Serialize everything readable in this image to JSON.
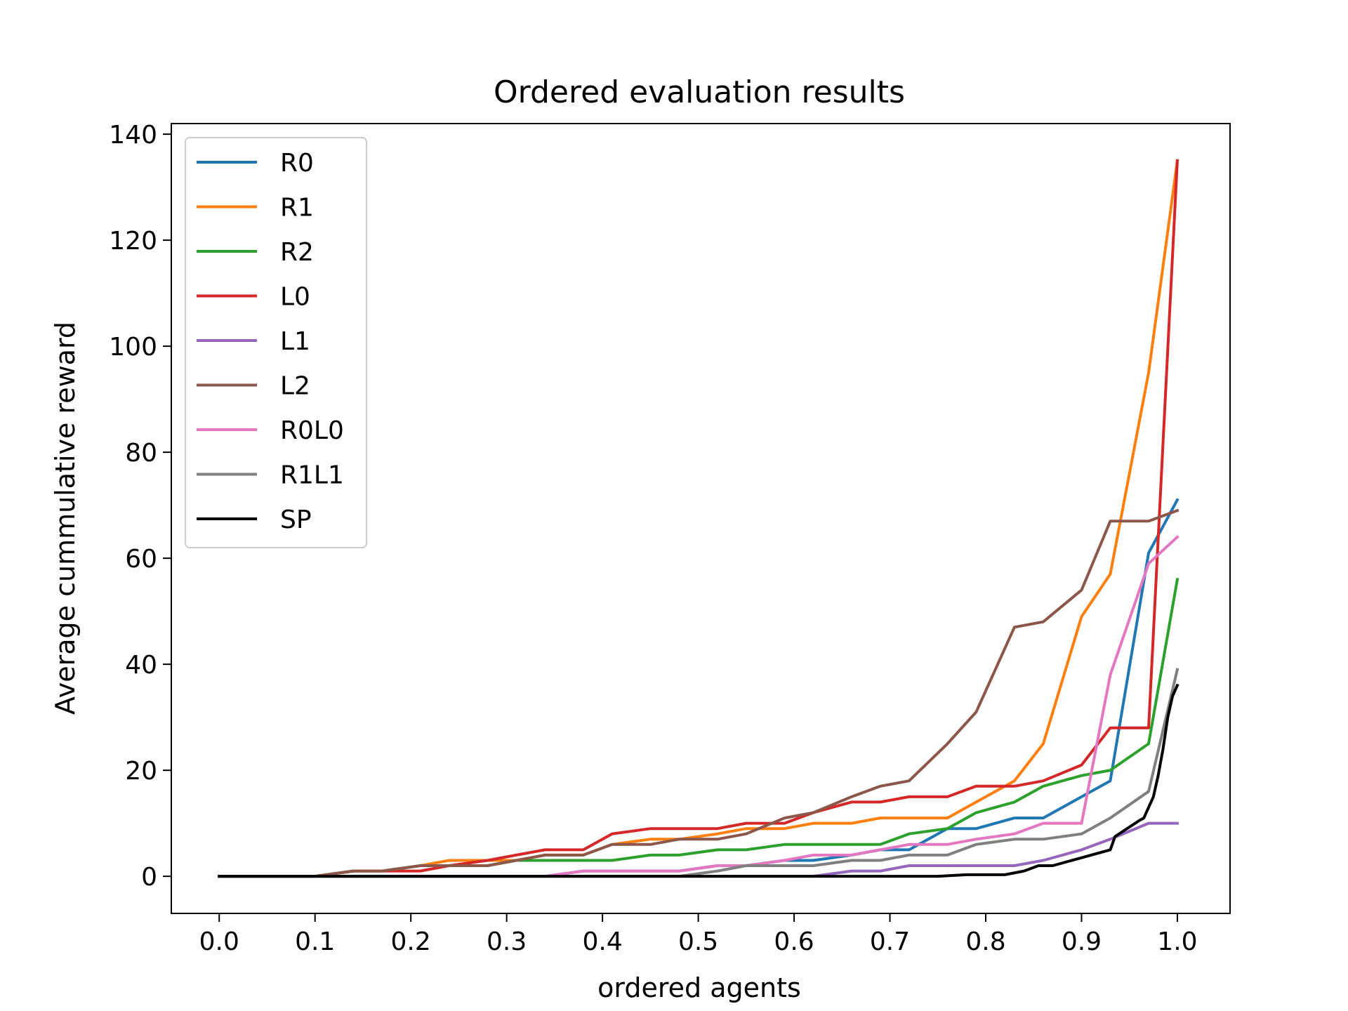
{
  "chart_data": {
    "type": "line",
    "title": "Ordered evaluation results",
    "xlabel": "ordered agents",
    "ylabel": "Average cummulative reward",
    "xlim": [
      -0.05,
      1.055
    ],
    "ylim": [
      -7,
      142
    ],
    "xticks": [
      "0.0",
      "0.1",
      "0.2",
      "0.3",
      "0.4",
      "0.5",
      "0.6",
      "0.7",
      "0.8",
      "0.9",
      "1.0"
    ],
    "yticks": [
      "0",
      "20",
      "40",
      "60",
      "80",
      "100",
      "120",
      "140"
    ],
    "grid": false,
    "legend_position": "top-left",
    "series": [
      {
        "name": "R0",
        "color": "#1f77b4",
        "x": [
          0,
          0.1,
          0.14,
          0.21,
          0.34,
          0.38,
          0.42,
          0.45,
          0.48,
          0.52,
          0.55,
          0.59,
          0.62,
          0.66,
          0.69,
          0.72,
          0.76,
          0.79,
          0.83,
          0.86,
          0.9,
          0.93,
          0.97,
          1.0
        ],
        "y": [
          0,
          0,
          0,
          0,
          0,
          1,
          1,
          1,
          1,
          2,
          2,
          3,
          3,
          4,
          5,
          5,
          9,
          9,
          11,
          11,
          15,
          18,
          61,
          71
        ]
      },
      {
        "name": "R1",
        "color": "#ff7f0e",
        "x": [
          0,
          0.1,
          0.14,
          0.17,
          0.21,
          0.24,
          0.28,
          0.31,
          0.34,
          0.38,
          0.41,
          0.45,
          0.48,
          0.52,
          0.55,
          0.59,
          0.62,
          0.66,
          0.69,
          0.72,
          0.76,
          0.79,
          0.83,
          0.86,
          0.9,
          0.93,
          0.97,
          1.0
        ],
        "y": [
          0,
          0,
          1,
          1,
          2,
          3,
          3,
          3,
          4,
          4,
          6,
          7,
          7,
          8,
          9,
          9,
          10,
          10,
          11,
          11,
          11,
          14,
          18,
          25,
          49,
          57,
          95,
          135
        ]
      },
      {
        "name": "R2",
        "color": "#2ca02c",
        "x": [
          0,
          0.1,
          0.14,
          0.17,
          0.21,
          0.24,
          0.28,
          0.31,
          0.34,
          0.38,
          0.41,
          0.45,
          0.48,
          0.52,
          0.55,
          0.59,
          0.62,
          0.66,
          0.69,
          0.72,
          0.76,
          0.79,
          0.83,
          0.86,
          0.9,
          0.93,
          0.97,
          1.0
        ],
        "y": [
          0,
          0,
          1,
          1,
          2,
          2,
          2,
          3,
          3,
          3,
          3,
          4,
          4,
          5,
          5,
          6,
          6,
          6,
          6,
          8,
          9,
          12,
          14,
          17,
          19,
          20,
          25,
          56
        ]
      },
      {
        "name": "L0",
        "color": "#d62728",
        "x": [
          0,
          0.1,
          0.14,
          0.17,
          0.21,
          0.24,
          0.28,
          0.31,
          0.34,
          0.38,
          0.41,
          0.45,
          0.48,
          0.52,
          0.55,
          0.59,
          0.62,
          0.66,
          0.69,
          0.72,
          0.76,
          0.79,
          0.83,
          0.86,
          0.9,
          0.93,
          0.97,
          1.0
        ],
        "y": [
          0,
          0,
          1,
          1,
          1,
          2,
          3,
          4,
          5,
          5,
          8,
          9,
          9,
          9,
          10,
          10,
          12,
          14,
          14,
          15,
          15,
          17,
          17,
          18,
          21,
          28,
          28,
          135
        ]
      },
      {
        "name": "L1",
        "color": "#9467bd",
        "x": [
          0,
          0.62,
          0.66,
          0.69,
          0.72,
          0.76,
          0.79,
          0.83,
          0.86,
          0.9,
          0.93,
          0.97,
          1.0
        ],
        "y": [
          0,
          0,
          1,
          1,
          2,
          2,
          2,
          2,
          3,
          5,
          7,
          10,
          10
        ]
      },
      {
        "name": "L2",
        "color": "#8c564b",
        "x": [
          0,
          0.1,
          0.14,
          0.17,
          0.21,
          0.24,
          0.28,
          0.31,
          0.34,
          0.38,
          0.41,
          0.45,
          0.48,
          0.52,
          0.55,
          0.59,
          0.62,
          0.66,
          0.69,
          0.72,
          0.76,
          0.79,
          0.83,
          0.86,
          0.9,
          0.93,
          0.97,
          1.0
        ],
        "y": [
          0,
          0,
          1,
          1,
          2,
          2,
          2,
          3,
          4,
          4,
          6,
          6,
          7,
          7,
          8,
          11,
          12,
          15,
          17,
          18,
          25,
          31,
          47,
          48,
          54,
          67,
          67,
          69
        ]
      },
      {
        "name": "R0L0",
        "color": "#e377c2",
        "x": [
          0,
          0.34,
          0.38,
          0.41,
          0.45,
          0.48,
          0.52,
          0.55,
          0.59,
          0.62,
          0.66,
          0.69,
          0.72,
          0.76,
          0.79,
          0.83,
          0.86,
          0.9,
          0.93,
          0.97,
          1.0
        ],
        "y": [
          0,
          0,
          1,
          1,
          1,
          1,
          2,
          2,
          3,
          4,
          4,
          5,
          6,
          6,
          7,
          8,
          10,
          10,
          38,
          59,
          64
        ]
      },
      {
        "name": "R1L1",
        "color": "#7f7f7f",
        "x": [
          0,
          0.48,
          0.52,
          0.55,
          0.59,
          0.62,
          0.66,
          0.69,
          0.72,
          0.76,
          0.79,
          0.83,
          0.86,
          0.9,
          0.93,
          0.97,
          1.0
        ],
        "y": [
          0,
          0,
          1,
          2,
          2,
          2,
          3,
          3,
          4,
          4,
          6,
          7,
          7,
          8,
          11,
          16,
          39
        ]
      },
      {
        "name": "SP",
        "color": "#000000",
        "x": [
          0,
          0.75,
          0.78,
          0.82,
          0.84,
          0.855,
          0.87,
          0.9,
          0.93,
          0.935,
          0.96,
          0.965,
          0.975,
          0.98,
          0.985,
          0.99,
          0.995,
          1.0
        ],
        "y": [
          0,
          0,
          0.3,
          0.3,
          1,
          2,
          2,
          3.5,
          5,
          7.5,
          10.5,
          11,
          15,
          19,
          24,
          30,
          34,
          36
        ]
      }
    ]
  }
}
